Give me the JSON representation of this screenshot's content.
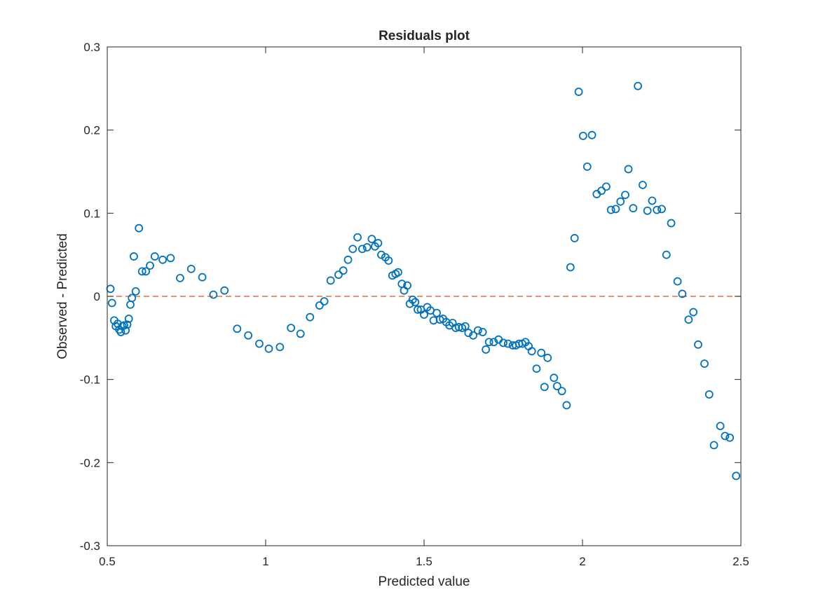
{
  "chart_data": {
    "type": "scatter",
    "title": "Residuals plot",
    "xlabel": "Predicted value",
    "ylabel": "Observed - Predicted",
    "xlim": [
      0.5,
      2.5
    ],
    "ylim": [
      -0.3,
      0.3
    ],
    "xticks": [
      "0.5",
      "1",
      "1.5",
      "2",
      "2.5"
    ],
    "yticks": [
      "-0.3",
      "-0.2",
      "-0.1",
      "0",
      "0.1",
      "0.2",
      "0.3"
    ],
    "grid": false,
    "reference_line": {
      "y": 0,
      "style": "dashed",
      "color": "#D95319"
    },
    "marker": "circle",
    "marker_color": "#0072BD",
    "points": [
      [
        0.51,
        0.009
      ],
      [
        0.515,
        -0.008
      ],
      [
        0.522,
        -0.029
      ],
      [
        0.527,
        -0.036
      ],
      [
        0.533,
        -0.033
      ],
      [
        0.538,
        -0.04
      ],
      [
        0.543,
        -0.043
      ],
      [
        0.548,
        -0.036
      ],
      [
        0.553,
        -0.035
      ],
      [
        0.558,
        -0.041
      ],
      [
        0.563,
        -0.034
      ],
      [
        0.568,
        -0.027
      ],
      [
        0.573,
        -0.01
      ],
      [
        0.578,
        -0.002
      ],
      [
        0.584,
        0.048
      ],
      [
        0.59,
        0.006
      ],
      [
        0.6,
        0.082
      ],
      [
        0.61,
        0.03
      ],
      [
        0.622,
        0.03
      ],
      [
        0.635,
        0.037
      ],
      [
        0.65,
        0.048
      ],
      [
        0.675,
        0.044
      ],
      [
        0.7,
        0.046
      ],
      [
        0.73,
        0.022
      ],
      [
        0.765,
        0.033
      ],
      [
        0.8,
        0.023
      ],
      [
        0.835,
        0.002
      ],
      [
        0.87,
        0.007
      ],
      [
        0.91,
        -0.039
      ],
      [
        0.945,
        -0.047
      ],
      [
        0.98,
        -0.057
      ],
      [
        1.01,
        -0.063
      ],
      [
        1.045,
        -0.061
      ],
      [
        1.08,
        -0.038
      ],
      [
        1.11,
        -0.045
      ],
      [
        1.14,
        -0.025
      ],
      [
        1.17,
        -0.011
      ],
      [
        1.185,
        -0.006
      ],
      [
        1.205,
        0.019
      ],
      [
        1.23,
        0.026
      ],
      [
        1.245,
        0.031
      ],
      [
        1.26,
        0.044
      ],
      [
        1.275,
        0.057
      ],
      [
        1.29,
        0.071
      ],
      [
        1.305,
        0.057
      ],
      [
        1.32,
        0.059
      ],
      [
        1.335,
        0.069
      ],
      [
        1.345,
        0.06
      ],
      [
        1.355,
        0.064
      ],
      [
        1.365,
        0.05
      ],
      [
        1.378,
        0.047
      ],
      [
        1.388,
        0.043
      ],
      [
        1.4,
        0.025
      ],
      [
        1.41,
        0.027
      ],
      [
        1.418,
        0.029
      ],
      [
        1.43,
        0.015
      ],
      [
        1.437,
        0.007
      ],
      [
        1.447,
        0.013
      ],
      [
        1.455,
        -0.009
      ],
      [
        1.464,
        -0.004
      ],
      [
        1.472,
        -0.007
      ],
      [
        1.48,
        -0.016
      ],
      [
        1.49,
        -0.016
      ],
      [
        1.5,
        -0.022
      ],
      [
        1.51,
        -0.013
      ],
      [
        1.52,
        -0.017
      ],
      [
        1.53,
        -0.029
      ],
      [
        1.54,
        -0.02
      ],
      [
        1.55,
        -0.028
      ],
      [
        1.56,
        -0.027
      ],
      [
        1.57,
        -0.031
      ],
      [
        1.58,
        -0.035
      ],
      [
        1.59,
        -0.032
      ],
      [
        1.6,
        -0.038
      ],
      [
        1.61,
        -0.037
      ],
      [
        1.62,
        -0.038
      ],
      [
        1.63,
        -0.036
      ],
      [
        1.64,
        -0.044
      ],
      [
        1.655,
        -0.047
      ],
      [
        1.67,
        -0.041
      ],
      [
        1.685,
        -0.043
      ],
      [
        1.695,
        -0.064
      ],
      [
        1.705,
        -0.055
      ],
      [
        1.72,
        -0.055
      ],
      [
        1.735,
        -0.052
      ],
      [
        1.75,
        -0.056
      ],
      [
        1.765,
        -0.057
      ],
      [
        1.78,
        -0.059
      ],
      [
        1.79,
        -0.059
      ],
      [
        1.8,
        -0.057
      ],
      [
        1.81,
        -0.057
      ],
      [
        1.82,
        -0.055
      ],
      [
        1.83,
        -0.06
      ],
      [
        1.84,
        -0.066
      ],
      [
        1.855,
        -0.087
      ],
      [
        1.87,
        -0.068
      ],
      [
        1.88,
        -0.109
      ],
      [
        1.89,
        -0.074
      ],
      [
        1.91,
        -0.098
      ],
      [
        1.92,
        -0.108
      ],
      [
        1.935,
        -0.114
      ],
      [
        1.95,
        -0.131
      ],
      [
        1.962,
        0.035
      ],
      [
        1.975,
        0.07
      ],
      [
        1.988,
        0.246
      ],
      [
        2.002,
        0.193
      ],
      [
        2.015,
        0.156
      ],
      [
        2.03,
        0.194
      ],
      [
        2.045,
        0.123
      ],
      [
        2.06,
        0.127
      ],
      [
        2.075,
        0.132
      ],
      [
        2.09,
        0.104
      ],
      [
        2.105,
        0.105
      ],
      [
        2.12,
        0.114
      ],
      [
        2.135,
        0.122
      ],
      [
        2.145,
        0.153
      ],
      [
        2.16,
        0.106
      ],
      [
        2.175,
        0.253
      ],
      [
        2.19,
        0.134
      ],
      [
        2.205,
        0.103
      ],
      [
        2.22,
        0.115
      ],
      [
        2.235,
        0.104
      ],
      [
        2.25,
        0.105
      ],
      [
        2.265,
        0.05
      ],
      [
        2.28,
        0.088
      ],
      [
        2.3,
        0.018
      ],
      [
        2.315,
        0.003
      ],
      [
        2.335,
        -0.028
      ],
      [
        2.35,
        -0.019
      ],
      [
        2.365,
        -0.058
      ],
      [
        2.385,
        -0.081
      ],
      [
        2.4,
        -0.118
      ],
      [
        2.415,
        -0.179
      ],
      [
        2.435,
        -0.156
      ],
      [
        2.45,
        -0.168
      ],
      [
        2.465,
        -0.17
      ],
      [
        2.485,
        -0.216
      ]
    ]
  }
}
